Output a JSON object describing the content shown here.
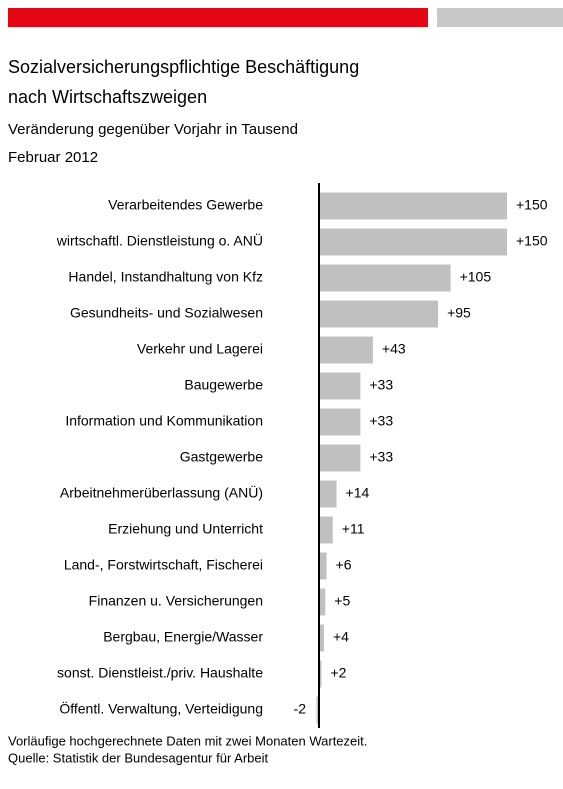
{
  "chart_data": {
    "type": "barh",
    "title": [
      "Sozialversicherungspflichtige Beschäftigung",
      "nach Wirtschaftszweigen"
    ],
    "subtitle": "Veränderung gegenüber Vorjahr in Tausend",
    "date": "Februar 2012",
    "categories": [
      "Verarbeitendes Gewerbe",
      "wirtschaftl. Dienstleistung o. ANÜ",
      "Handel, Instandhaltung von Kfz",
      "Gesundheits- und Sozialwesen",
      "Verkehr und Lagerei",
      "Baugewerbe",
      "Information und Kommunikation",
      "Gastgewerbe",
      "Arbeitnehmerüberlassung (ANÜ)",
      "Erziehung und Unterricht",
      "Land-, Forstwirtschaft, Fischerei",
      "Finanzen u. Versicherungen",
      "Bergbau, Energie/Wasser",
      "sonst. Dienstleist./priv. Haushalte",
      "Öffentl. Verwaltung, Verteidigung"
    ],
    "values": [
      150,
      150,
      105,
      95,
      43,
      33,
      33,
      33,
      14,
      11,
      6,
      5,
      4,
      2,
      -2
    ],
    "value_labels": [
      "+150",
      "+150",
      "+105",
      "+95",
      "+43",
      "+33",
      "+33",
      "+33",
      "+14",
      "+11",
      "+6",
      "+5",
      "+4",
      "+2",
      "-2"
    ],
    "color": "#c0c0c0",
    "notes": [
      "Vorläufige hochgerechnete Daten mit zwei Monaten Wartezeit.",
      "Quelle: Statistik der Bundesagentur für Arbeit"
    ]
  }
}
